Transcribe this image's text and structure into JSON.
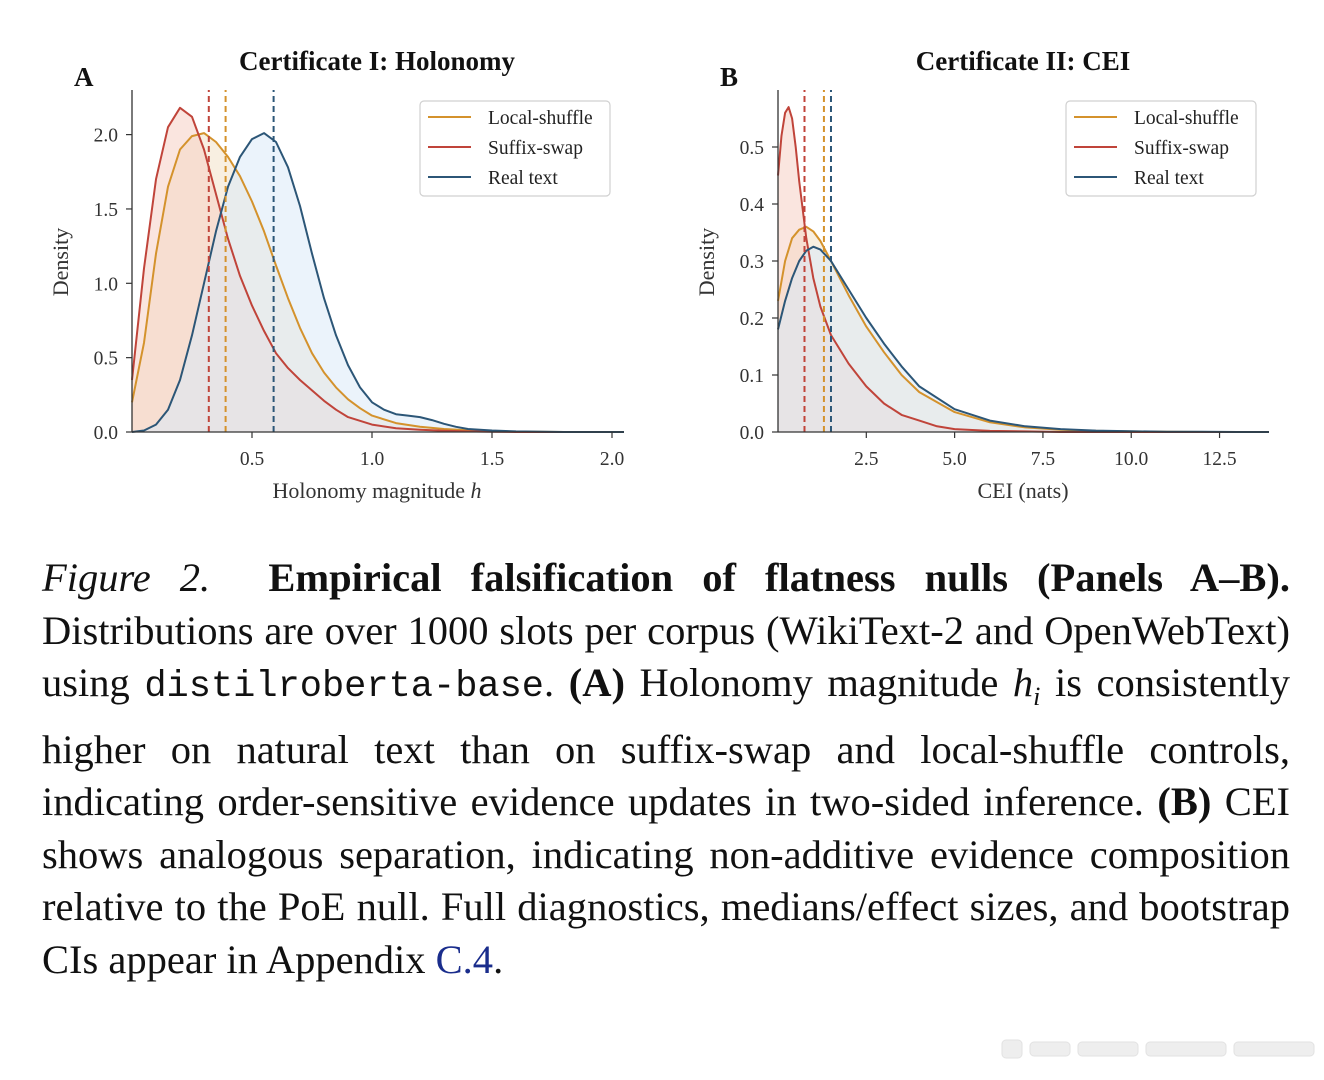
{
  "panels": [
    {
      "letter": "A",
      "title": "Certificate I: Holonomy",
      "xlabel": "Holonomy magnitude ",
      "xlabel_var": "h",
      "ylabel": "Density",
      "legend": [
        "Local-shuffle",
        "Suffix-swap",
        "Real text"
      ]
    },
    {
      "letter": "B",
      "title": "Certificate II: CEI",
      "xlabel": "CEI (nats)",
      "xlabel_var": "",
      "ylabel": "Density",
      "legend": [
        "Local-shuffle",
        "Suffix-swap",
        "Real text"
      ]
    }
  ],
  "chart_data": [
    {
      "type": "area",
      "title": "Certificate I: Holonomy",
      "xlabel": "Holonomy magnitude h",
      "ylabel": "Density",
      "xlim": [
        0.0,
        2.05
      ],
      "ylim": [
        0.0,
        2.3
      ],
      "xticks": [
        0.5,
        1.0,
        1.5,
        2.0
      ],
      "xtick_labels": [
        "0.5",
        "1.0",
        "1.5",
        "2.0"
      ],
      "yticks": [
        0.0,
        0.5,
        1.0,
        1.5,
        2.0
      ],
      "ytick_labels": [
        "0.0",
        "0.5",
        "1.0",
        "1.5",
        "2.0"
      ],
      "legend_position": "top-right",
      "series": [
        {
          "name": "Local-shuffle",
          "color": "#d4922c",
          "fill": "#f2e2c8",
          "median": 0.39,
          "x": [
            0.0,
            0.05,
            0.1,
            0.15,
            0.2,
            0.25,
            0.3,
            0.35,
            0.4,
            0.45,
            0.5,
            0.55,
            0.6,
            0.65,
            0.7,
            0.75,
            0.8,
            0.85,
            0.9,
            0.95,
            1.0,
            1.1,
            1.2,
            1.3,
            1.4,
            1.5,
            1.6,
            1.8,
            2.05
          ],
          "y": [
            0.2,
            0.6,
            1.2,
            1.65,
            1.9,
            1.99,
            2.01,
            1.95,
            1.85,
            1.72,
            1.55,
            1.35,
            1.12,
            0.9,
            0.7,
            0.53,
            0.4,
            0.3,
            0.22,
            0.16,
            0.11,
            0.06,
            0.035,
            0.02,
            0.012,
            0.006,
            0.003,
            0.0,
            0.0
          ]
        },
        {
          "name": "Suffix-swap",
          "color": "#c0443a",
          "fill": "#f6d0c4",
          "median": 0.32,
          "x": [
            0.0,
            0.05,
            0.1,
            0.15,
            0.2,
            0.25,
            0.3,
            0.35,
            0.4,
            0.45,
            0.5,
            0.55,
            0.6,
            0.65,
            0.7,
            0.75,
            0.8,
            0.85,
            0.9,
            1.0,
            1.1,
            1.2,
            1.3,
            1.4,
            1.5,
            1.6,
            1.8,
            2.05
          ],
          "y": [
            0.35,
            1.1,
            1.7,
            2.05,
            2.18,
            2.12,
            1.9,
            1.6,
            1.3,
            1.05,
            0.85,
            0.68,
            0.53,
            0.43,
            0.35,
            0.28,
            0.21,
            0.15,
            0.1,
            0.05,
            0.025,
            0.015,
            0.008,
            0.004,
            0.002,
            0.0,
            0.0,
            0.0
          ]
        },
        {
          "name": "Real text",
          "color": "#2c5677",
          "fill": "#dbeaf8",
          "median": 0.59,
          "x": [
            0.0,
            0.05,
            0.1,
            0.15,
            0.2,
            0.25,
            0.3,
            0.35,
            0.4,
            0.45,
            0.5,
            0.55,
            0.6,
            0.65,
            0.7,
            0.75,
            0.8,
            0.85,
            0.9,
            0.95,
            1.0,
            1.05,
            1.1,
            1.15,
            1.2,
            1.25,
            1.3,
            1.35,
            1.4,
            1.5,
            1.6,
            1.8,
            2.05
          ],
          "y": [
            0.0,
            0.01,
            0.05,
            0.15,
            0.35,
            0.65,
            1.0,
            1.35,
            1.65,
            1.85,
            1.97,
            2.01,
            1.95,
            1.78,
            1.52,
            1.2,
            0.9,
            0.65,
            0.45,
            0.3,
            0.2,
            0.15,
            0.12,
            0.11,
            0.1,
            0.08,
            0.055,
            0.035,
            0.02,
            0.01,
            0.004,
            0.0,
            0.0
          ]
        }
      ]
    },
    {
      "type": "area",
      "title": "Certificate II: CEI",
      "xlabel": "CEI (nats)",
      "ylabel": "Density",
      "xlim": [
        0.0,
        13.9
      ],
      "ylim": [
        0.0,
        0.6
      ],
      "xticks": [
        2.5,
        5.0,
        7.5,
        10.0,
        12.5
      ],
      "xtick_labels": [
        "2.5",
        "5.0",
        "7.5",
        "10.0",
        "12.5"
      ],
      "yticks": [
        0.0,
        0.1,
        0.2,
        0.3,
        0.4,
        0.5
      ],
      "ytick_labels": [
        "0.0",
        "0.1",
        "0.2",
        "0.3",
        "0.4",
        "0.5"
      ],
      "legend_position": "top-right",
      "series": [
        {
          "name": "Local-shuffle",
          "color": "#d4922c",
          "fill": "#f2e2c8",
          "median": 1.3,
          "x": [
            0.0,
            0.2,
            0.4,
            0.6,
            0.8,
            1.0,
            1.2,
            1.5,
            2.0,
            2.5,
            3.0,
            3.5,
            4.0,
            5.0,
            6.0,
            7.0,
            8.0,
            9.0,
            10.0,
            11.0,
            12.0,
            13.0,
            13.9
          ],
          "y": [
            0.23,
            0.3,
            0.34,
            0.355,
            0.36,
            0.352,
            0.335,
            0.3,
            0.24,
            0.185,
            0.14,
            0.1,
            0.07,
            0.035,
            0.017,
            0.008,
            0.004,
            0.002,
            0.001,
            0.0005,
            0.0,
            0.0,
            0.0
          ]
        },
        {
          "name": "Suffix-swap",
          "color": "#c0443a",
          "fill": "#f6d0c4",
          "median": 0.75,
          "x": [
            0.0,
            0.1,
            0.2,
            0.3,
            0.4,
            0.5,
            0.6,
            0.8,
            1.0,
            1.2,
            1.5,
            2.0,
            2.5,
            3.0,
            3.5,
            4.0,
            4.5,
            5.0,
            6.0,
            7.0,
            8.0,
            10.0,
            13.9
          ],
          "y": [
            0.45,
            0.52,
            0.56,
            0.57,
            0.55,
            0.5,
            0.44,
            0.34,
            0.27,
            0.22,
            0.17,
            0.12,
            0.08,
            0.05,
            0.03,
            0.02,
            0.01,
            0.005,
            0.002,
            0.001,
            0.0,
            0.0,
            0.0
          ]
        },
        {
          "name": "Real text",
          "color": "#2c5677",
          "fill": "#dbeaf8",
          "median": 1.5,
          "x": [
            0.0,
            0.2,
            0.4,
            0.6,
            0.8,
            1.0,
            1.2,
            1.5,
            2.0,
            2.5,
            3.0,
            3.5,
            4.0,
            5.0,
            6.0,
            7.0,
            8.0,
            9.0,
            10.0,
            11.0,
            12.0,
            13.0,
            13.9
          ],
          "y": [
            0.18,
            0.23,
            0.27,
            0.3,
            0.318,
            0.325,
            0.32,
            0.3,
            0.25,
            0.2,
            0.155,
            0.115,
            0.08,
            0.04,
            0.02,
            0.01,
            0.005,
            0.0025,
            0.0012,
            0.0006,
            0.0003,
            0.0,
            0.0
          ]
        }
      ]
    }
  ],
  "caption": {
    "label": "Figure 2.",
    "bold_title": "Empirical falsification of flatness nulls (Panels A–B).",
    "text1": "Distributions are over 1000 slots per corpus (WikiText-2 and OpenWebText) using",
    "model": "distilroberta-base",
    "text2": ".",
    "a_marker": "(A)",
    "text3": "Holonomy magnitude",
    "math_h": "h",
    "math_i": "i",
    "text4": "is consistently higher on natural text than on suffix-swap and local-shuffle controls, indicating order-sensitive evidence updates in two-sided inference.",
    "b_marker": "(B)",
    "text5": "CEI shows analogous separation, indicating non-additive evidence composition relative to the PoE null. Full diagnostics, medians/effect sizes, and bootstrap CIs appear in Appendix",
    "link": "C.4",
    "text6": "."
  }
}
